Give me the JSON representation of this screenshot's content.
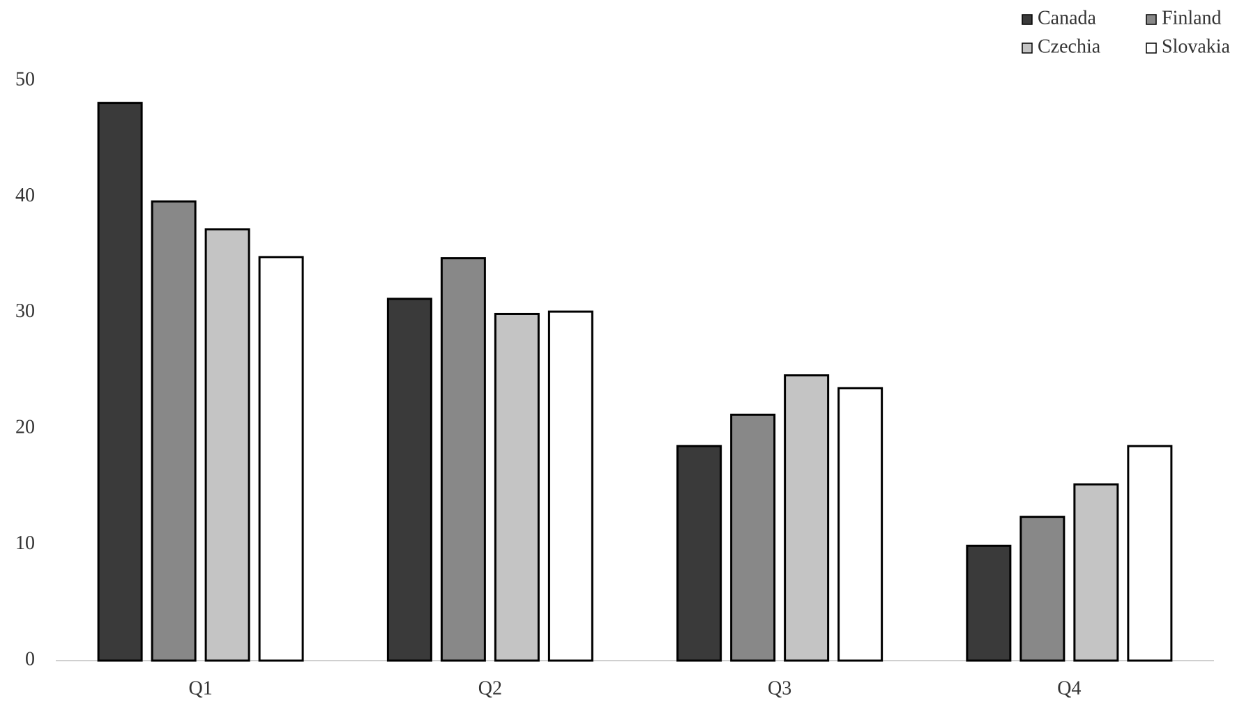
{
  "chart_data": {
    "type": "bar",
    "categories": [
      "Q1",
      "Q2",
      "Q3",
      "Q4"
    ],
    "series": [
      {
        "name": "Canada",
        "color": "#3a3a3a",
        "values": [
          48.1,
          31.2,
          18.5,
          9.9
        ]
      },
      {
        "name": "Finland",
        "color": "#888888",
        "values": [
          39.6,
          34.7,
          21.2,
          12.4
        ]
      },
      {
        "name": "Czechia",
        "color": "#c4c4c4",
        "values": [
          37.2,
          29.9,
          24.6,
          15.2
        ]
      },
      {
        "name": "Slovakia",
        "color": "#ffffff",
        "values": [
          34.8,
          30.1,
          23.5,
          18.5
        ]
      }
    ],
    "ylim": [
      0,
      50
    ],
    "yticks": [
      0,
      10,
      20,
      30,
      40,
      50
    ],
    "grid": false,
    "legend": "top-right"
  }
}
